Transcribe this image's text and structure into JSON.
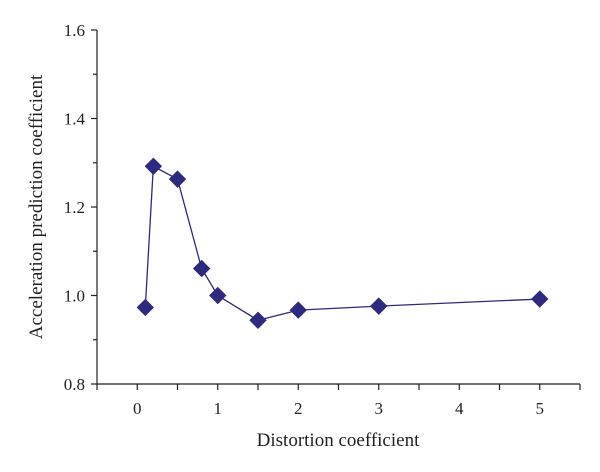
{
  "chart_data": {
    "type": "line",
    "title": "",
    "xlabel": "Distortion coefficient",
    "ylabel": "Acceleration prediction coefficient",
    "xlim": [
      -0.5,
      5.5
    ],
    "ylim": [
      0.8,
      1.6
    ],
    "x_ticks": [
      0,
      1,
      2,
      3,
      4,
      5
    ],
    "y_ticks": [
      0.8,
      1.0,
      1.2,
      1.4,
      1.6
    ],
    "x_tick_labels": [
      "0",
      "1",
      "2",
      "3",
      "4",
      "5"
    ],
    "y_tick_labels": [
      "0.8",
      "1.0",
      "1.2",
      "1.4",
      "1.6"
    ],
    "grid": false,
    "marker": "diamond",
    "colors": {
      "series": "#2e2a7e",
      "axis": "#231f20"
    },
    "series": [
      {
        "x": [
          0.1,
          0.2,
          0.5,
          0.8,
          1.0,
          1.5,
          2.0,
          3.0,
          5.0
        ],
        "y": [
          0.973,
          1.292,
          1.263,
          1.061,
          1.0,
          0.944,
          0.967,
          0.976,
          0.992
        ]
      }
    ]
  }
}
